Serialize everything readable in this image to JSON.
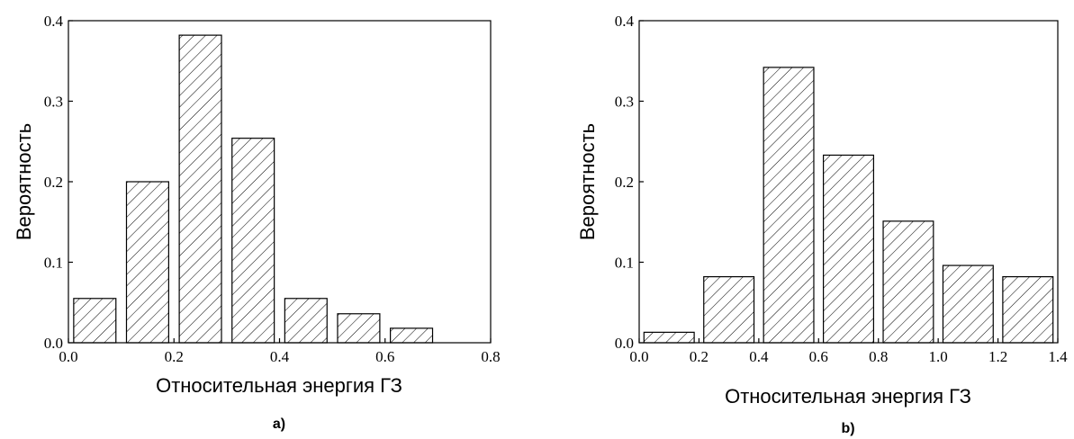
{
  "chart_data": [
    {
      "type": "bar",
      "caption": "a)",
      "xlabel": "Относительная энергия ГЗ",
      "ylabel": "Вероятность",
      "xlim": [
        0.0,
        0.8
      ],
      "ylim": [
        0.0,
        0.4
      ],
      "xticks": [
        "0.0",
        "0.2",
        "0.4",
        "0.6",
        "0.8"
      ],
      "yticks": [
        "0.0",
        "0.1",
        "0.2",
        "0.3",
        "0.4"
      ],
      "bins": [
        {
          "x0": 0.0,
          "x1": 0.1,
          "value": 0.055
        },
        {
          "x0": 0.1,
          "x1": 0.2,
          "value": 0.2
        },
        {
          "x0": 0.2,
          "x1": 0.3,
          "value": 0.382
        },
        {
          "x0": 0.3,
          "x1": 0.4,
          "value": 0.254
        },
        {
          "x0": 0.4,
          "x1": 0.5,
          "value": 0.055
        },
        {
          "x0": 0.5,
          "x1": 0.6,
          "value": 0.036
        },
        {
          "x0": 0.6,
          "x1": 0.7,
          "value": 0.018
        }
      ]
    },
    {
      "type": "bar",
      "caption": "b)",
      "xlabel": "Относительная энергия ГЗ",
      "ylabel": "Вероятность",
      "xlim": [
        0.0,
        1.4
      ],
      "ylim": [
        0.0,
        0.4
      ],
      "xticks": [
        "0.0",
        "0.2",
        "0.4",
        "0.6",
        "0.8",
        "1.0",
        "1.2",
        "1.4"
      ],
      "yticks": [
        "0.0",
        "0.1",
        "0.2",
        "0.3",
        "0.4"
      ],
      "bins": [
        {
          "x0": 0.0,
          "x1": 0.2,
          "value": 0.013
        },
        {
          "x0": 0.2,
          "x1": 0.4,
          "value": 0.082
        },
        {
          "x0": 0.4,
          "x1": 0.6,
          "value": 0.342
        },
        {
          "x0": 0.6,
          "x1": 0.8,
          "value": 0.233
        },
        {
          "x0": 0.8,
          "x1": 1.0,
          "value": 0.151
        },
        {
          "x0": 1.0,
          "x1": 1.2,
          "value": 0.096
        },
        {
          "x0": 1.2,
          "x1": 1.4,
          "value": 0.082
        }
      ]
    }
  ]
}
